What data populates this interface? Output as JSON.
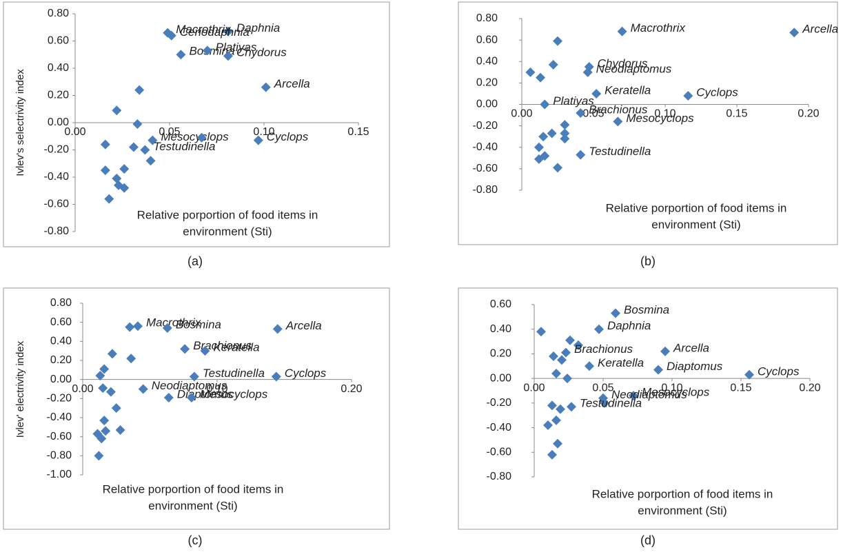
{
  "chart_data": [
    {
      "type": "scatter",
      "caption": "(a)",
      "y_label": "Ivlev's selectrivity index",
      "x_label": [
        "Relative porportion of food items in",
        "environment (Sti)"
      ],
      "xlim": [
        0,
        0.15
      ],
      "ylim": [
        -0.8,
        0.8
      ],
      "xticks": [
        {
          "value": 0,
          "label": "0.00"
        },
        {
          "value": 0.05,
          "label": "0.05"
        },
        {
          "value": 0.1,
          "label": "0.10"
        },
        {
          "value": 0.15,
          "label": "0.15"
        }
      ],
      "yticks": [
        {
          "value": -0.8,
          "label": "-0.80"
        },
        {
          "value": -0.6,
          "label": "-0.60"
        },
        {
          "value": -0.4,
          "label": "-0.40"
        },
        {
          "value": -0.2,
          "label": "-0.20"
        },
        {
          "value": 0,
          "label": "0.00"
        },
        {
          "value": 0.2,
          "label": "0.20"
        },
        {
          "value": 0.4,
          "label": "0.40"
        },
        {
          "value": 0.6,
          "label": "0.60"
        },
        {
          "value": 0.8,
          "label": "0.80"
        }
      ],
      "series": [
        {
          "color": "#4a7ebb",
          "x": [
            0.081,
            0.049,
            0.051,
            0.056,
            0.07,
            0.081,
            0.101,
            0.034,
            0.022,
            0.033,
            0.041,
            0.067,
            0.097,
            0.016,
            0.031,
            0.037,
            0.04,
            0.016,
            0.026,
            0.022,
            0.023,
            0.026,
            0.018
          ],
          "values": [
            0.67,
            0.66,
            0.64,
            0.5,
            0.53,
            0.49,
            0.26,
            0.24,
            0.09,
            -0.01,
            -0.13,
            -0.11,
            -0.13,
            -0.16,
            -0.18,
            -0.2,
            -0.28,
            -0.35,
            -0.34,
            -0.41,
            -0.46,
            -0.48,
            -0.56
          ],
          "labels": [
            "Daphnia",
            "Macrothrix",
            "Ceriodaphnia",
            "Bosmina",
            "Platiyas",
            "Chydorus",
            "Arcella",
            null,
            null,
            null,
            "Mesocyclops",
            null,
            "Cyclops",
            null,
            null,
            "Testudinella",
            null,
            null,
            null,
            null,
            null,
            null,
            null
          ]
        }
      ]
    },
    {
      "type": "scatter",
      "caption": "(b)",
      "x_label": [
        "Relative porportion of food items in",
        "environment (Sti)"
      ],
      "xlim": [
        0,
        0.2
      ],
      "ylim": [
        -0.8,
        0.8
      ],
      "xticks": [
        {
          "value": 0,
          "label": "0.00"
        },
        {
          "value": 0.05,
          "label": "0.05"
        },
        {
          "value": 0.1,
          "label": "0.10"
        },
        {
          "value": 0.15,
          "label": "0.15"
        },
        {
          "value": 0.2,
          "label": "0.20"
        }
      ],
      "yticks": [
        {
          "value": -0.8,
          "label": "-0.80"
        },
        {
          "value": -0.6,
          "label": "-0.60"
        },
        {
          "value": -0.4,
          "label": "-0.40"
        },
        {
          "value": -0.2,
          "label": "-0.20"
        },
        {
          "value": 0,
          "label": "0.00"
        },
        {
          "value": 0.2,
          "label": "0.20"
        },
        {
          "value": 0.4,
          "label": "0.40"
        },
        {
          "value": 0.6,
          "label": "0.60"
        },
        {
          "value": 0.8,
          "label": "0.80"
        }
      ],
      "series": [
        {
          "color": "#4a7ebb",
          "x": [
            0.19,
            0.07,
            0.025,
            0.022,
            0.047,
            0.046,
            0.006,
            0.013,
            0.052,
            0.116,
            0.016,
            0.041,
            0.067,
            0.03,
            0.03,
            0.03,
            0.021,
            0.015,
            0.012,
            0.041,
            0.016,
            0.012,
            0.025
          ],
          "values": [
            0.67,
            0.68,
            0.59,
            0.37,
            0.35,
            0.3,
            0.3,
            0.25,
            0.1,
            0.08,
            0.0,
            -0.08,
            -0.16,
            -0.19,
            -0.27,
            -0.32,
            -0.27,
            -0.3,
            -0.4,
            -0.47,
            -0.48,
            -0.51,
            -0.59
          ],
          "labels": [
            "Arcella",
            "Macrothrix",
            null,
            null,
            "Chydorus",
            "Neodiaptomus",
            null,
            null,
            "Keratella",
            "Cyclops",
            "Platiyas",
            "Brachionus",
            "Mesocyclops",
            null,
            null,
            null,
            null,
            null,
            null,
            "Testudinella",
            null,
            null,
            null
          ]
        }
      ]
    },
    {
      "type": "scatter",
      "caption": "(c)",
      "y_label": "Ivlev' electrivity index",
      "x_label": [
        "Relative porportion of food items in",
        "environment (Sti)"
      ],
      "xlim": [
        0,
        0.2
      ],
      "ylim": [
        -1,
        0.8
      ],
      "xticks": [
        {
          "value": 0,
          "label": "0.00"
        },
        {
          "value": 0.1,
          "label": "0.10"
        },
        {
          "value": 0.2,
          "label": "0.20"
        }
      ],
      "yticks": [
        {
          "value": -1,
          "label": "-1.00"
        },
        {
          "value": -0.8,
          "label": "-0.80"
        },
        {
          "value": -0.6,
          "label": "-0.60"
        },
        {
          "value": -0.4,
          "label": "-0.40"
        },
        {
          "value": -0.2,
          "label": "-0.20"
        },
        {
          "value": 0,
          "label": "0.00"
        },
        {
          "value": 0.2,
          "label": "0.20"
        },
        {
          "value": 0.4,
          "label": "0.40"
        },
        {
          "value": 0.6,
          "label": "0.60"
        },
        {
          "value": 0.8,
          "label": "0.80"
        }
      ],
      "series": [
        {
          "color": "#4a7ebb",
          "x": [
            0.145,
            0.041,
            0.035,
            0.063,
            0.076,
            0.091,
            0.036,
            0.022,
            0.016,
            0.013,
            0.083,
            0.144,
            0.045,
            0.015,
            0.021,
            0.064,
            0.081,
            0.025,
            0.016,
            0.028,
            0.017,
            0.011,
            0.014,
            0.012
          ],
          "values": [
            0.53,
            0.56,
            0.55,
            0.54,
            0.32,
            0.3,
            0.22,
            0.27,
            0.11,
            0.04,
            0.03,
            0.03,
            -0.1,
            -0.09,
            -0.13,
            -0.19,
            -0.19,
            -0.3,
            -0.43,
            -0.53,
            -0.54,
            -0.57,
            -0.62,
            -0.8
          ],
          "labels": [
            "Arcella",
            "Macrothrix",
            null,
            "Bosmina",
            "Brachionus",
            "Keratella",
            null,
            null,
            null,
            null,
            "Testudinella",
            "Cyclops",
            "Neodiaptomus",
            null,
            null,
            "Diaptomus",
            "Mesocyclops",
            null,
            null,
            null,
            null,
            null,
            null,
            null
          ]
        }
      ]
    },
    {
      "type": "scatter",
      "caption": "(d)",
      "x_label": [
        "Relative porportion of food items in",
        "environment (Sti)"
      ],
      "xlim": [
        0,
        0.2
      ],
      "ylim": [
        -0.8,
        0.6
      ],
      "xticks": [
        {
          "value": 0,
          "label": "0.00"
        },
        {
          "value": 0.05,
          "label": "0.05"
        },
        {
          "value": 0.1,
          "label": "0.10"
        },
        {
          "value": 0.15,
          "label": "0.15"
        },
        {
          "value": 0.2,
          "label": "0.20"
        }
      ],
      "yticks": [
        {
          "value": -0.8,
          "label": "-0.80"
        },
        {
          "value": -0.6,
          "label": "-0.60"
        },
        {
          "value": -0.4,
          "label": "-0.40"
        },
        {
          "value": -0.2,
          "label": "-0.20"
        },
        {
          "value": 0,
          "label": "0.00"
        },
        {
          "value": 0.2,
          "label": "0.20"
        },
        {
          "value": 0.4,
          "label": "0.40"
        },
        {
          "value": 0.6,
          "label": "0.60"
        }
      ],
      "series": [
        {
          "color": "#4a7ebb",
          "x": [
            0.059,
            0.047,
            0.005,
            0.026,
            0.032,
            0.023,
            0.014,
            0.02,
            0.095,
            0.04,
            0.09,
            0.156,
            0.016,
            0.024,
            0.072,
            0.05,
            0.051,
            0.013,
            0.019,
            0.027,
            0.016,
            0.01,
            0.017,
            0.013
          ],
          "values": [
            0.53,
            0.4,
            0.38,
            0.31,
            0.27,
            0.21,
            0.18,
            0.15,
            0.22,
            0.1,
            0.07,
            0.03,
            0.04,
            0.0,
            -0.14,
            -0.16,
            -0.2,
            -0.22,
            -0.25,
            -0.23,
            -0.34,
            -0.38,
            -0.53,
            -0.62
          ],
          "labels": [
            "Bosmina",
            "Daphnia",
            null,
            null,
            null,
            "Brachionus",
            null,
            null,
            "Arcella",
            "Keratella",
            "Diaptomus",
            "Cyclops",
            null,
            null,
            "Mesocyclops",
            "Neodiaptomus",
            null,
            null,
            null,
            "Testudinella",
            null,
            null,
            null,
            null
          ]
        }
      ]
    }
  ]
}
